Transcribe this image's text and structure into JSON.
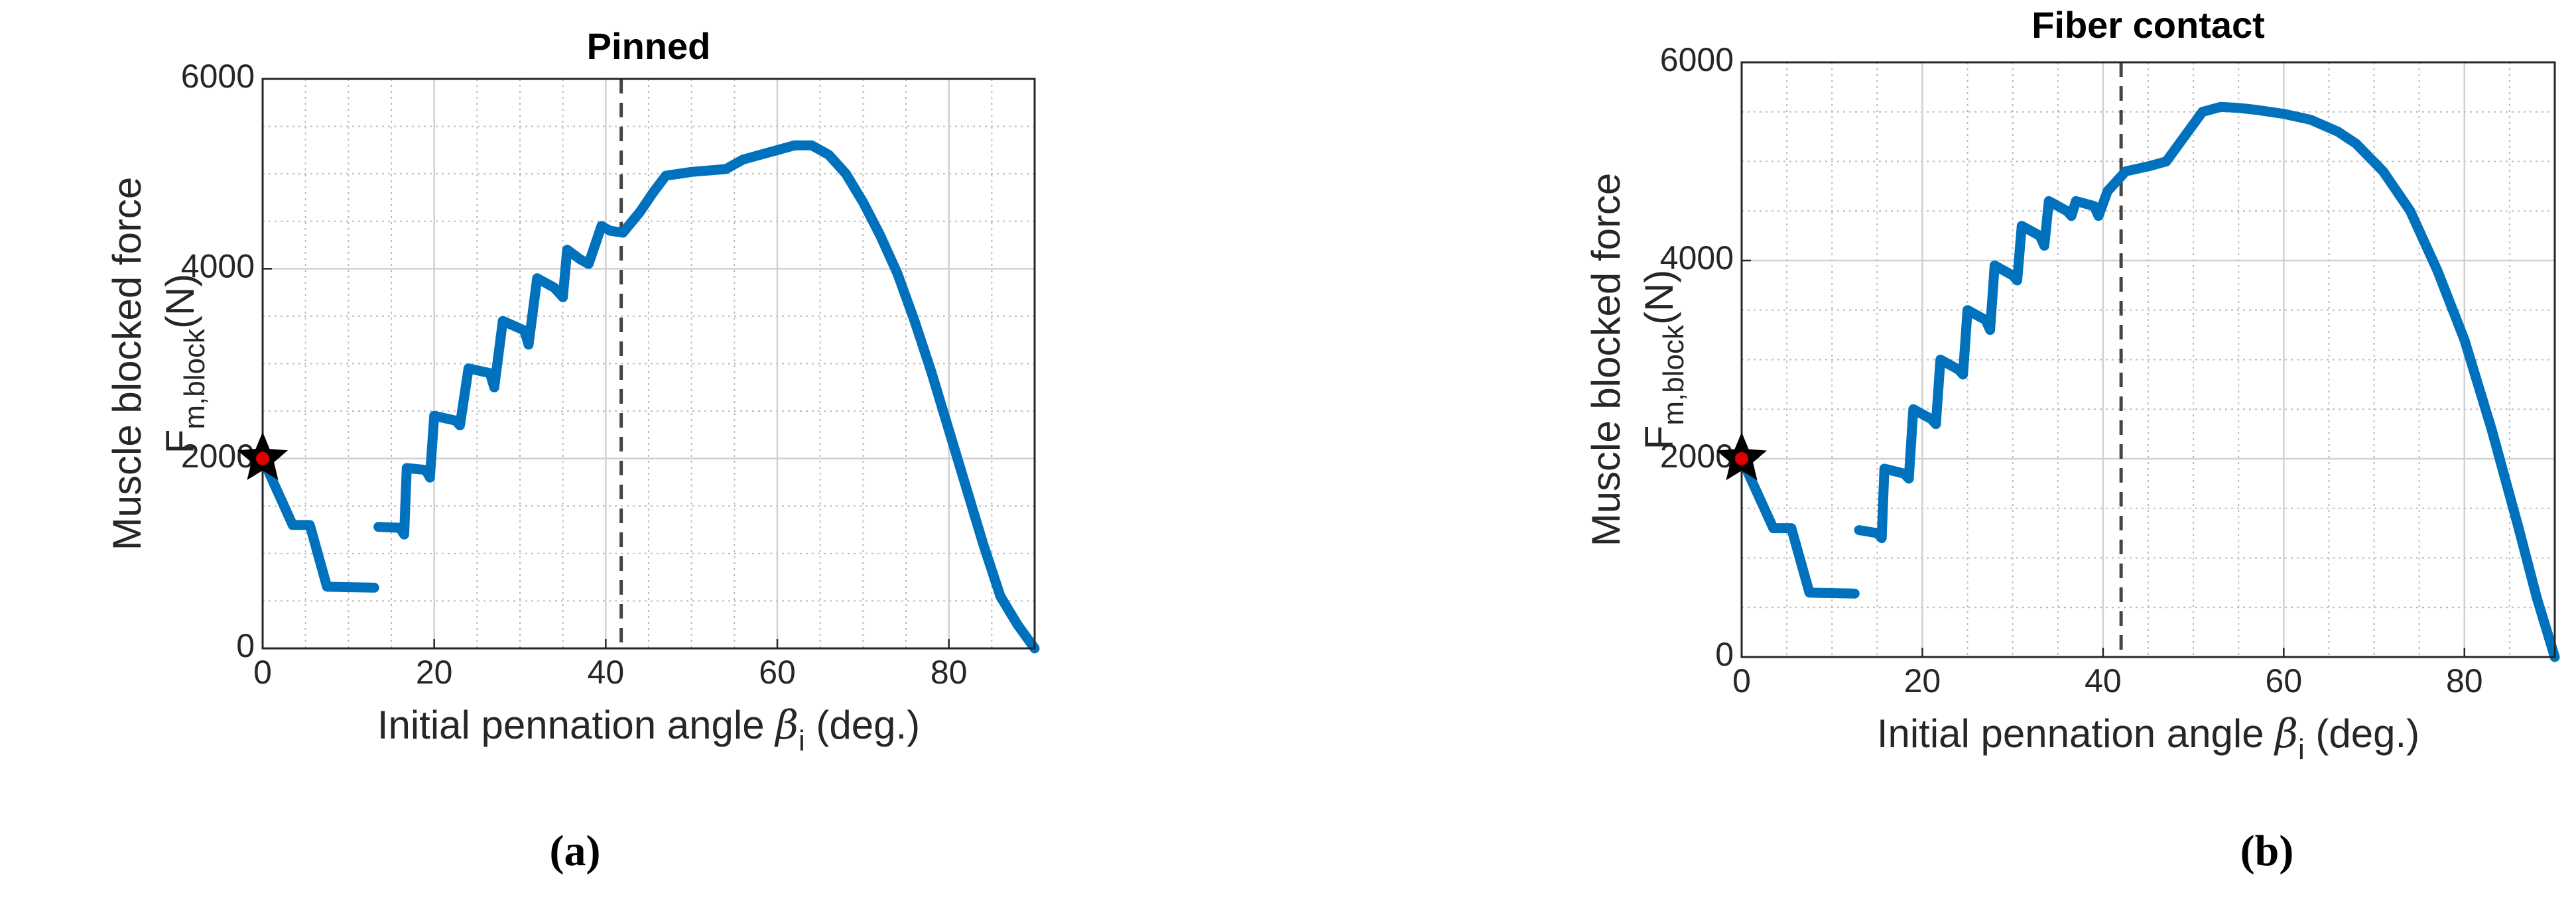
{
  "chart_data": [
    {
      "type": "line",
      "title": "Pinned",
      "caption": "(a)",
      "ylabel": [
        "Muscle blocked force",
        "F",
        "m,block",
        "(N)"
      ],
      "xlabel": [
        "Initial pennation angle ",
        "β",
        "i",
        " (deg.)"
      ],
      "xlim": [
        0,
        90
      ],
      "xticks": [
        0,
        20,
        40,
        60,
        80
      ],
      "ylim": [
        0,
        6000
      ],
      "yticks": [
        0,
        2000,
        4000,
        6000
      ],
      "grid": true,
      "minor_grid": true,
      "vline": 41.8,
      "marker": {
        "x": 0,
        "y": 2000
      },
      "series": [
        {
          "color": "#0072BD",
          "x": [
            0,
            1,
            3.5,
            5.5,
            7.5,
            13,
            13.2,
            13.5,
            16,
            16.5,
            16.8,
            19,
            19.5,
            20,
            22.5,
            23,
            24,
            26.5,
            27,
            28,
            30.5,
            31,
            32,
            34,
            35,
            35.5,
            37,
            38,
            39.5,
            40.5,
            42,
            44,
            45.5,
            47,
            50,
            54,
            55,
            56,
            58,
            60,
            62,
            64,
            66,
            68,
            70,
            72,
            74,
            76,
            78,
            80,
            82,
            84,
            86,
            88,
            90
          ],
          "values": [
            2000,
            1800,
            1300,
            1300,
            650,
            640,
            null,
            1280,
            1270,
            1200,
            1900,
            1880,
            1800,
            2450,
            2400,
            2350,
            2950,
            2900,
            2750,
            3450,
            3350,
            3200,
            3900,
            3800,
            3700,
            4200,
            4100,
            4050,
            4450,
            4400,
            4380,
            4600,
            4800,
            4980,
            5020,
            5050,
            5100,
            5150,
            5200,
            5250,
            5300,
            5300,
            5200,
            5000,
            4700,
            4350,
            3950,
            3450,
            2900,
            2300,
            1700,
            1100,
            550,
            250,
            0
          ]
        }
      ]
    },
    {
      "type": "line",
      "title": "Fiber contact",
      "caption": "(b)",
      "ylabel": [
        "Muscle blocked force",
        "F",
        "m,block",
        "(N)"
      ],
      "xlabel": [
        "Initial pennation angle ",
        "β",
        "i",
        " (deg.)"
      ],
      "xlim": [
        0,
        90
      ],
      "xticks": [
        0,
        20,
        40,
        60,
        80
      ],
      "ylim": [
        0,
        6000
      ],
      "yticks": [
        0,
        2000,
        4000,
        6000
      ],
      "grid": true,
      "minor_grid": true,
      "vline": 42,
      "marker": {
        "x": 0,
        "y": 2000
      },
      "series": [
        {
          "color": "#0072BD",
          "x": [
            0,
            1,
            3.5,
            5.5,
            7.5,
            12.5,
            12.8,
            13,
            15,
            15.5,
            15.8,
            18,
            18.5,
            19,
            21,
            21.5,
            22,
            24,
            24.5,
            25,
            27,
            27.5,
            28,
            30,
            30.5,
            31,
            33,
            33.5,
            34,
            36,
            36.5,
            37,
            39,
            39.5,
            40.5,
            42,
            42.5,
            45,
            47,
            49,
            51,
            53,
            55,
            57,
            60,
            63,
            66,
            68,
            71,
            74,
            77,
            80,
            83,
            86,
            88,
            90
          ],
          "values": [
            2000,
            1800,
            1300,
            1300,
            650,
            640,
            null,
            1280,
            1250,
            1200,
            1900,
            1850,
            1800,
            2500,
            2400,
            2350,
            3000,
            2900,
            2850,
            3500,
            3400,
            3300,
            3950,
            3850,
            3800,
            4350,
            4250,
            4150,
            4600,
            4500,
            4450,
            4600,
            4550,
            4450,
            4700,
            4850,
            4900,
            4950,
            5000,
            5250,
            5500,
            5550,
            5540,
            5520,
            5480,
            5420,
            5300,
            5180,
            4900,
            4500,
            3900,
            3200,
            2300,
            1300,
            600,
            0
          ]
        }
      ]
    }
  ]
}
